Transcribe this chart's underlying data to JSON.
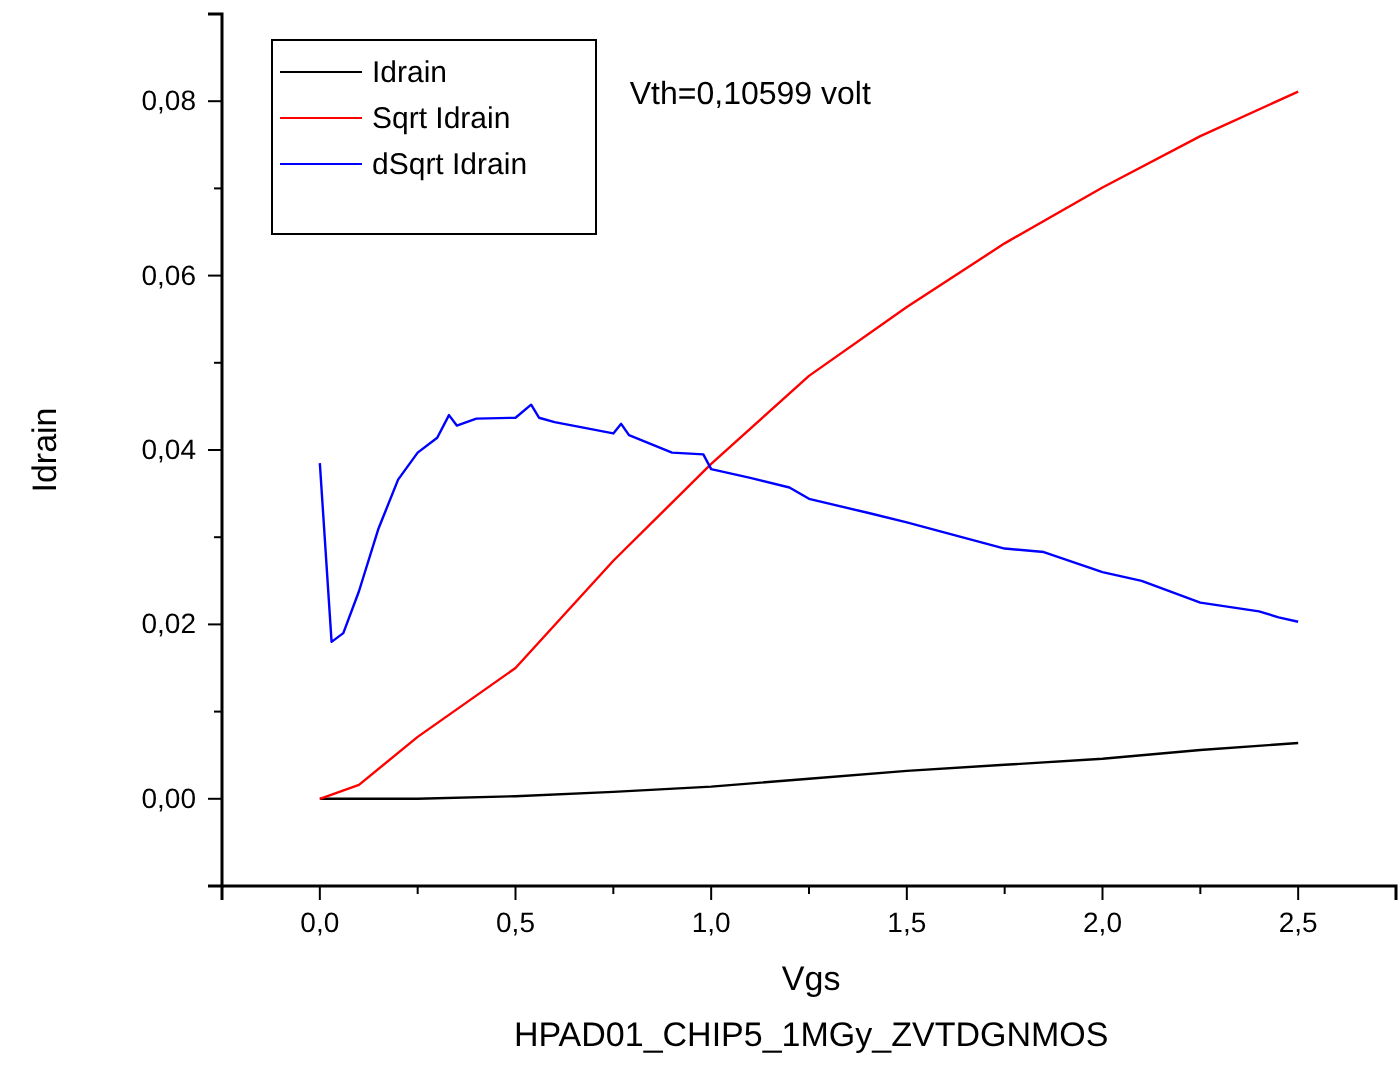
{
  "chart_data": {
    "type": "line",
    "xlabel": "Vgs",
    "ylabel": "Idrain",
    "annotations": [
      "Vth=0,10599 volt",
      "HPAD01_CHIP5_1MGy_ZVTDGNMOS"
    ],
    "xlim": [
      -0.25,
      2.75
    ],
    "xticks": [
      {
        "value": 0,
        "label": "0,0"
      },
      {
        "value": 0.5,
        "label": "0,5"
      },
      {
        "value": 1,
        "label": "1,0"
      },
      {
        "value": 1.5,
        "label": "1,5"
      },
      {
        "value": 2,
        "label": "2,0"
      },
      {
        "value": 2.5,
        "label": "2,5"
      }
    ],
    "ylim": [
      -0.01,
      0.09
    ],
    "yticks": [
      {
        "value": 0,
        "label": "0,00"
      },
      {
        "value": 0.02,
        "label": "0,02"
      },
      {
        "value": 0.04,
        "label": "0,04"
      },
      {
        "value": 0.06,
        "label": "0,06"
      },
      {
        "value": 0.08,
        "label": "0,08"
      }
    ],
    "grid": false,
    "legend": "top left",
    "marker": "none",
    "line_style": "solid",
    "series": [
      {
        "name": "Idrain",
        "color": "#000000",
        "x": [
          0,
          0.25,
          0.5,
          0.75,
          1,
          1.25,
          1.5,
          1.75,
          2,
          2.25,
          2.5
        ],
        "values": [
          0,
          0,
          0.0003,
          0.0008,
          0.0014,
          0.0023,
          0.0032,
          0.0039,
          0.0046,
          0.0056,
          0.0064
        ]
      },
      {
        "name": "Sqrt Idrain",
        "color": "#ff0000",
        "x": [
          0,
          0.1,
          0.25,
          0.5,
          0.75,
          1,
          1.25,
          1.5,
          1.75,
          2,
          2.25,
          2.5
        ],
        "values": [
          0,
          0.0016,
          0.0071,
          0.015,
          0.0273,
          0.0384,
          0.0485,
          0.0564,
          0.0637,
          0.0701,
          0.076,
          0.0811
        ]
      },
      {
        "name": "dSqrt Idrain",
        "color": "#0000ff",
        "x": [
          0,
          0.03,
          0.06,
          0.1,
          0.15,
          0.2,
          0.25,
          0.3,
          0.33,
          0.35,
          0.4,
          0.5,
          0.54,
          0.56,
          0.6,
          0.75,
          0.77,
          0.79,
          0.9,
          0.98,
          1,
          1.1,
          1.2,
          1.25,
          1.4,
          1.5,
          1.6,
          1.75,
          1.85,
          2,
          2.1,
          2.25,
          2.4,
          2.45,
          2.5
        ],
        "values": [
          0.0385,
          0.018,
          0.019,
          0.0238,
          0.031,
          0.0366,
          0.0397,
          0.0414,
          0.044,
          0.0428,
          0.0436,
          0.0437,
          0.0452,
          0.0437,
          0.0432,
          0.0419,
          0.043,
          0.0417,
          0.0397,
          0.0395,
          0.0378,
          0.0368,
          0.0357,
          0.0344,
          0.0328,
          0.0317,
          0.0305,
          0.0287,
          0.0283,
          0.026,
          0.025,
          0.0225,
          0.0215,
          0.0208,
          0.0203
        ]
      }
    ]
  }
}
